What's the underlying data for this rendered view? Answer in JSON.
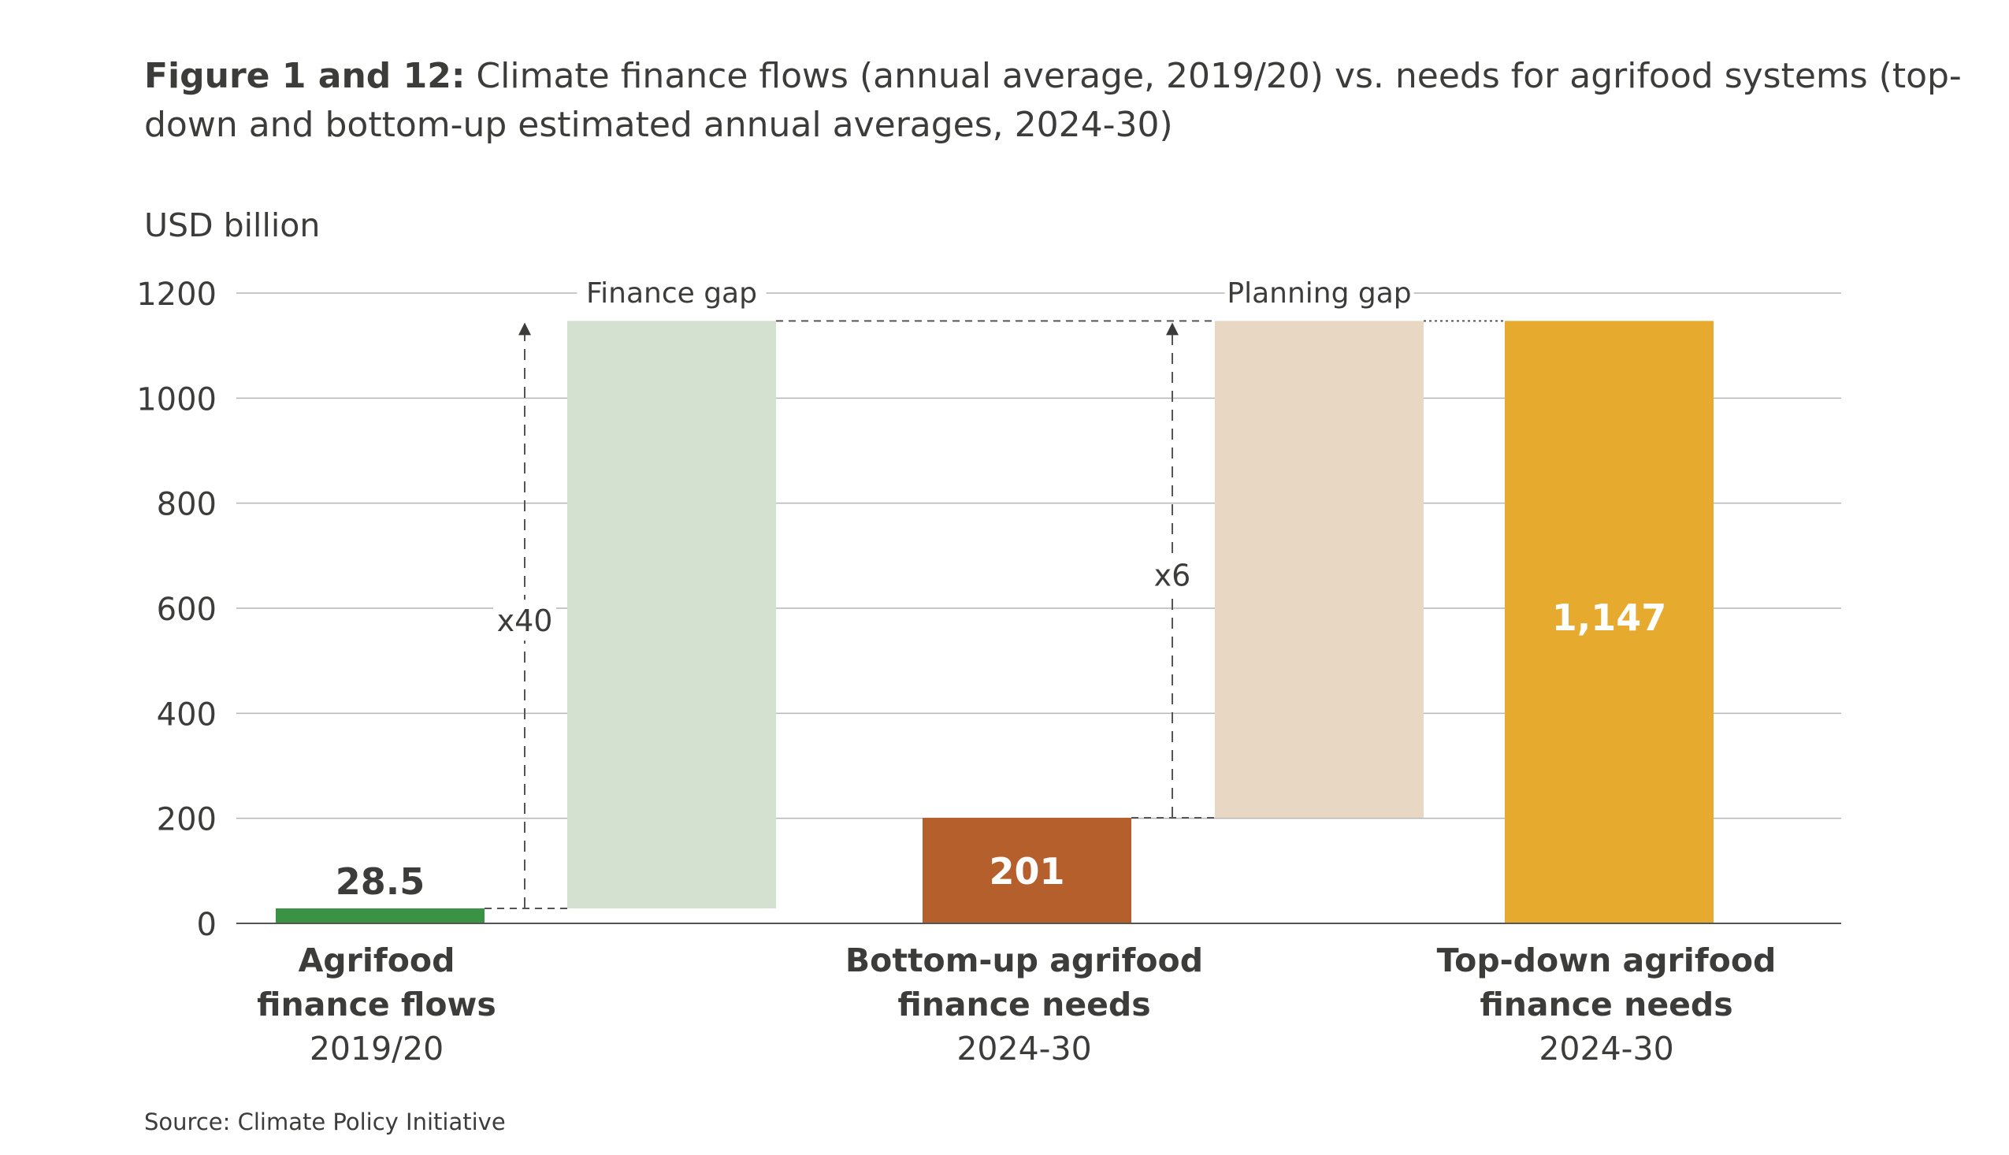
{
  "figure": {
    "title_bold": "Figure 1 and 12:",
    "title_rest": " Climate finance flows (annual average, 2019/20) vs. needs for agrifood systems (top-down and bottom-up estimated annual averages, 2024-30)",
    "source": "Source: Climate Policy Initiative"
  },
  "chart_data": {
    "type": "bar",
    "ylabel": "USD billion",
    "ylim": [
      0,
      1200
    ],
    "yticks": [
      0,
      200,
      400,
      600,
      800,
      1000,
      1200
    ],
    "grid": true,
    "categories": [
      {
        "lines": [
          "Agrifood",
          "finance flows",
          "2019/20"
        ],
        "value": 28.5,
        "label": "28.5",
        "color": "#3a9245",
        "label_position": "above",
        "label_color": "#3c3c3b"
      },
      {
        "lines": [
          "Bottom-up agrifood",
          "finance needs",
          "2024-30"
        ],
        "value": 201,
        "label": "201",
        "color": "#b5602c",
        "label_position": "inside",
        "label_color": "#ffffff"
      },
      {
        "lines": [
          "Top-down agrifood",
          "finance needs",
          "2024-30"
        ],
        "value": 1147,
        "label": "1,147",
        "color": "#e6aa2f",
        "label_position": "inside",
        "label_color": "#ffffff"
      }
    ],
    "gaps": [
      {
        "name": "Finance gap",
        "from": 28.5,
        "to": 1147,
        "color": "#d5e1d0",
        "multiplier": "x40"
      },
      {
        "name": "Planning gap",
        "from": 201,
        "to": 1147,
        "color": "#e8d8c3",
        "multiplier": "x6"
      }
    ]
  }
}
